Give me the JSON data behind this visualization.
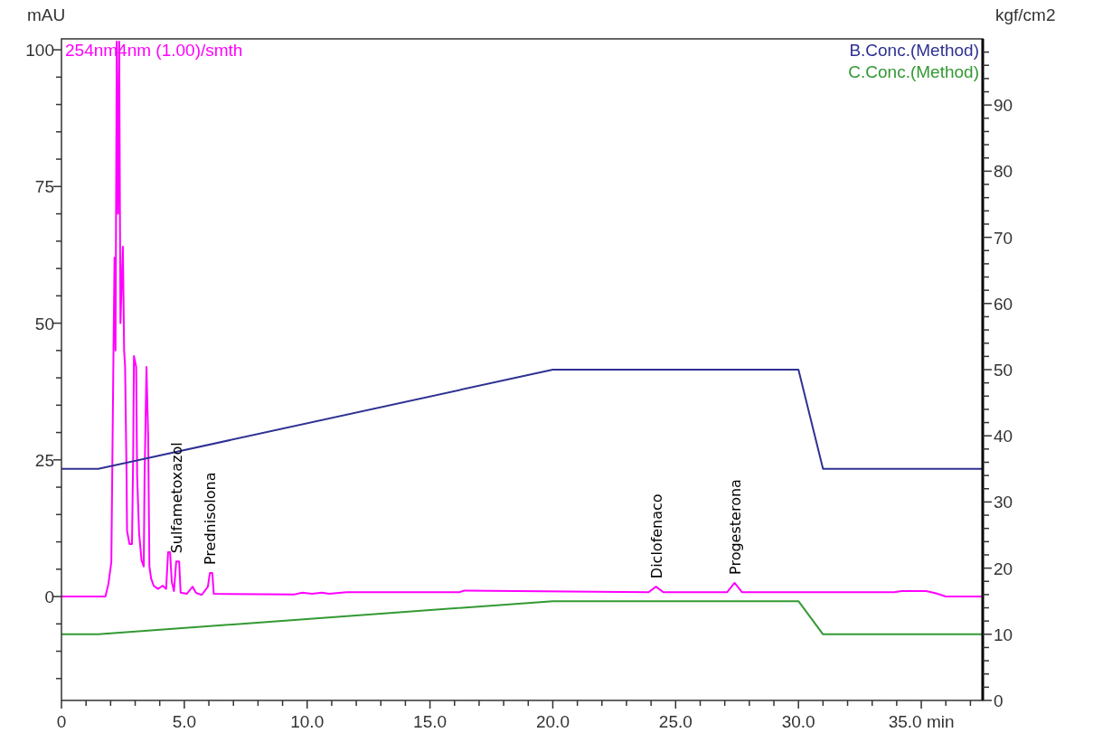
{
  "chart_data": {
    "type": "line",
    "ylabel": "mAU",
    "y2label": "kgf/cm2",
    "xlim": [
      0,
      37.5
    ],
    "xticks": [
      0,
      {
        "value": 1,
        "label": null
      },
      {
        "value": 2,
        "label": null
      },
      {
        "value": 3,
        "label": null
      },
      {
        "value": 4,
        "label": null
      },
      {
        "value": 5,
        "label": "5.0"
      },
      {
        "value": 6,
        "label": null
      },
      {
        "value": 7,
        "label": null
      },
      {
        "value": 8,
        "label": null
      },
      {
        "value": 9,
        "label": null
      },
      {
        "value": 10,
        "label": "10.0"
      },
      {
        "value": 11,
        "label": null
      },
      {
        "value": 12,
        "label": null
      },
      {
        "value": 13,
        "label": null
      },
      {
        "value": 14,
        "label": null
      },
      {
        "value": 15,
        "label": "15.0"
      },
      {
        "value": 16,
        "label": null
      },
      {
        "value": 17,
        "label": null
      },
      {
        "value": 18,
        "label": null
      },
      {
        "value": 19,
        "label": null
      },
      {
        "value": 20,
        "label": "20.0"
      },
      {
        "value": 21,
        "label": null
      },
      {
        "value": 22,
        "label": null
      },
      {
        "value": 23,
        "label": null
      },
      {
        "value": 24,
        "label": null
      },
      {
        "value": 25,
        "label": "25.0"
      },
      {
        "value": 26,
        "label": null
      },
      {
        "value": 27,
        "label": null
      },
      {
        "value": 28,
        "label": null
      },
      {
        "value": 29,
        "label": null
      },
      {
        "value": 30,
        "label": "30.0"
      },
      {
        "value": 31,
        "label": null
      },
      {
        "value": 32,
        "label": null
      },
      {
        "value": 33,
        "label": null
      },
      {
        "value": 34,
        "label": null
      },
      {
        "value": 35,
        "label": "35.0 min"
      },
      {
        "value": 36,
        "label": null
      },
      {
        "value": 37,
        "label": null
      }
    ],
    "ylim": [
      -19,
      102
    ],
    "yticks": [
      {
        "value": -15,
        "label": null
      },
      {
        "value": -10,
        "label": null
      },
      {
        "value": -5,
        "label": null
      },
      0,
      {
        "value": 5,
        "label": null
      },
      {
        "value": 10,
        "label": null
      },
      {
        "value": 15,
        "label": null
      },
      {
        "value": 20,
        "label": null
      },
      25,
      {
        "value": 30,
        "label": null
      },
      {
        "value": 35,
        "label": null
      },
      {
        "value": 40,
        "label": null
      },
      {
        "value": 45,
        "label": null
      },
      50,
      {
        "value": 55,
        "label": null
      },
      {
        "value": 60,
        "label": null
      },
      {
        "value": 65,
        "label": null
      },
      {
        "value": 70,
        "label": null
      },
      75,
      {
        "value": 80,
        "label": null
      },
      {
        "value": 85,
        "label": null
      },
      {
        "value": 90,
        "label": null
      },
      {
        "value": 95,
        "label": null
      },
      100
    ],
    "y2lim": [
      0,
      100
    ],
    "y2ticks": [
      0,
      {
        "value": 2,
        "label": null
      },
      {
        "value": 4,
        "label": null
      },
      {
        "value": 6,
        "label": null
      },
      {
        "value": 8,
        "label": null
      },
      10,
      {
        "value": 12,
        "label": null
      },
      {
        "value": 14,
        "label": null
      },
      {
        "value": 16,
        "label": null
      },
      {
        "value": 18,
        "label": null
      },
      20,
      {
        "value": 22,
        "label": null
      },
      {
        "value": 24,
        "label": null
      },
      {
        "value": 26,
        "label": null
      },
      {
        "value": 28,
        "label": null
      },
      30,
      {
        "value": 32,
        "label": null
      },
      {
        "value": 34,
        "label": null
      },
      {
        "value": 36,
        "label": null
      },
      {
        "value": 38,
        "label": null
      },
      40,
      {
        "value": 42,
        "label": null
      },
      {
        "value": 44,
        "label": null
      },
      {
        "value": 46,
        "label": null
      },
      {
        "value": 48,
        "label": null
      },
      50,
      {
        "value": 52,
        "label": null
      },
      {
        "value": 54,
        "label": null
      },
      {
        "value": 56,
        "label": null
      },
      {
        "value": 58,
        "label": null
      },
      60,
      {
        "value": 62,
        "label": null
      },
      {
        "value": 64,
        "label": null
      },
      {
        "value": 66,
        "label": null
      },
      {
        "value": 68,
        "label": null
      },
      70,
      {
        "value": 72,
        "label": null
      },
      {
        "value": 74,
        "label": null
      },
      {
        "value": 76,
        "label": null
      },
      {
        "value": 78,
        "label": null
      },
      80,
      {
        "value": 82,
        "label": null
      },
      {
        "value": 84,
        "label": null
      },
      {
        "value": 86,
        "label": null
      },
      {
        "value": 88,
        "label": null
      },
      90,
      {
        "value": 92,
        "label": null
      },
      {
        "value": 94,
        "label": null
      },
      {
        "value": 96,
        "label": null
      },
      {
        "value": 98,
        "label": null
      }
    ],
    "grid": false,
    "legend": "top right",
    "marker": "none",
    "line_style": "solid",
    "series": [
      {
        "name": "254nm4nm (1.00)/smth",
        "color": "#ff00ff",
        "x": [
          0,
          1.79,
          1.91,
          2.03,
          2.12,
          2.16,
          2.2,
          2.25,
          2.3,
          2.35,
          2.4,
          2.5,
          2.55,
          2.59,
          2.65,
          2.67,
          2.77,
          2.87,
          2.92,
          2.95,
          3.04,
          3.08,
          3.16,
          3.26,
          3.35,
          3.38,
          3.46,
          3.53,
          3.58,
          3.65,
          3.75,
          3.93,
          4.12,
          4.26,
          4.34,
          4.42,
          4.49,
          4.58,
          4.67,
          4.79,
          4.85,
          5.1,
          5.34,
          5.47,
          5.71,
          5.96,
          6.04,
          6.14,
          6.2,
          9.5,
          9.8,
          10.2,
          10.6,
          10.9,
          11.6,
          16.2,
          16.4,
          23.9,
          24.2,
          24.5,
          27.1,
          27.4,
          27.7,
          33.9,
          34.2,
          35.2,
          35.6,
          36.0,
          37.5
        ],
        "values": [
          0,
          0,
          2.3,
          6.3,
          46,
          62,
          45,
          101.5,
          70,
          101.5,
          50,
          64,
          45,
          42,
          22,
          12,
          9.6,
          9.6,
          26,
          44,
          42,
          22,
          11.6,
          6.6,
          5.5,
          21,
          42,
          29,
          5.5,
          3.3,
          2,
          1.4,
          2,
          1.4,
          8.1,
          8.1,
          2.7,
          1,
          6.4,
          6.4,
          0.7,
          0.5,
          1.8,
          0.7,
          0.3,
          1.8,
          4.3,
          4.3,
          0.5,
          0.4,
          0.7,
          0.5,
          0.7,
          0.5,
          0.8,
          0.8,
          1.1,
          0.8,
          1.8,
          0.8,
          0.8,
          2.5,
          0.8,
          0.8,
          1,
          1,
          0.6,
          0,
          0
        ]
      },
      {
        "name": "B.Conc.(Method)",
        "color": "#2e3192",
        "axis": "y2",
        "x": [
          0,
          1.5,
          20,
          30,
          31,
          37.5
        ],
        "values": [
          35,
          35,
          50,
          50,
          35,
          35
        ]
      },
      {
        "name": "C.Conc.(Method)",
        "color": "#339933",
        "axis": "y2",
        "x": [
          0,
          1.5,
          20,
          30,
          31,
          37.5
        ],
        "values": [
          10,
          10,
          15,
          15,
          10,
          10
        ]
      }
    ],
    "annotations": [
      {
        "text": "Sulfametoxazol",
        "x": 4.67,
        "y": 6.4
      },
      {
        "text": "Prednisolona",
        "x": 6.04,
        "y": 4.3
      },
      {
        "text": "Diclofenaco",
        "x": 24.2,
        "y": 1.8
      },
      {
        "text": "Progesterona",
        "x": 27.4,
        "y": 2.5
      }
    ]
  }
}
